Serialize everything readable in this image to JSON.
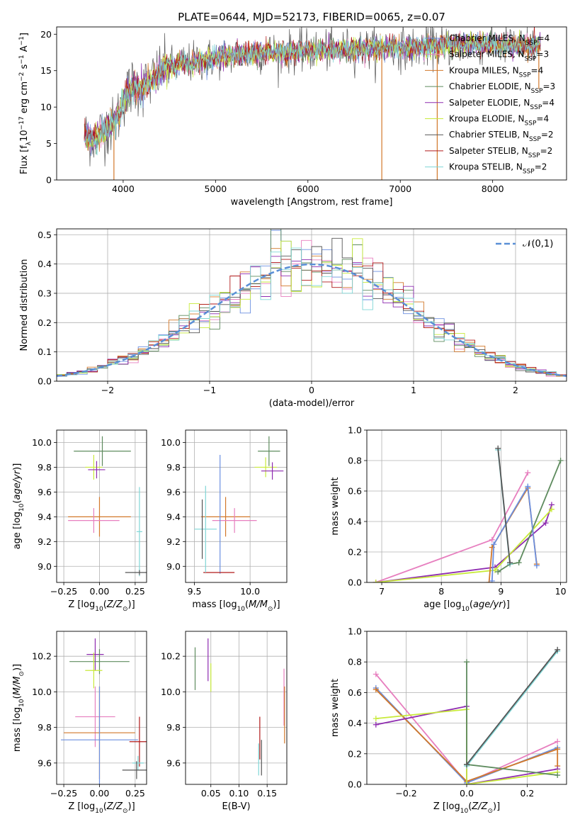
{
  "title": "PLATE=0644, MJD=52173, FIBERID=0065, z=0.07",
  "colors": {
    "Chabrier MILES": "#6b8fe0",
    "Salpeter MILES": "#e77fbf",
    "Kroupa MILES": "#d2782a",
    "Chabrier ELODIE": "#5e8b5e",
    "Salpeter ELODIE": "#8e2bb0",
    "Kroupa ELODIE": "#c8ea3a",
    "Chabrier STELIB": "#555555",
    "Salpeter STELIB": "#b01a1a",
    "Kroupa STELIB": "#7fd6d6"
  },
  "legend": [
    {
      "name": "Chabrier MILES",
      "nssp": "4"
    },
    {
      "name": "Salpeter MILES",
      "nssp": "3"
    },
    {
      "name": "Kroupa MILES",
      "nssp": "4"
    },
    {
      "name": "Chabrier ELODIE",
      "nssp": "3"
    },
    {
      "name": "Salpeter ELODIE",
      "nssp": "4"
    },
    {
      "name": "Kroupa ELODIE",
      "nssp": "4"
    },
    {
      "name": "Chabrier STELIB",
      "nssp": "2"
    },
    {
      "name": "Salpeter STELIB",
      "nssp": "2"
    },
    {
      "name": "Kroupa STELIB",
      "nssp": "2"
    }
  ],
  "chart_data": [
    {
      "id": "spectrum",
      "type": "line",
      "xlabel": "wavelength [Angstrom, rest frame]",
      "ylabel": "Flux [f_λ10^-17 erg cm^-2 s^-1 A^-1]",
      "xlim": [
        3280,
        8800
      ],
      "ylim": [
        0,
        21
      ],
      "xticks": [
        4000,
        5000,
        6000,
        7000,
        8000
      ],
      "yticks": [
        0,
        5,
        10,
        15,
        20
      ],
      "grid": false,
      "legend_position": "right",
      "continuum": {
        "x": [
          3580,
          3700,
          3800,
          3900,
          3950,
          4000,
          4100,
          4200,
          4300,
          4400,
          4500,
          4700,
          4900,
          5100,
          5300,
          5500,
          5700,
          5900,
          6100,
          6300,
          6500,
          6700,
          6900,
          7100,
          7300,
          7500,
          7700,
          7900,
          8100,
          8300,
          8500
        ],
        "y": [
          6.0,
          5.8,
          7.0,
          7.5,
          9.0,
          11.0,
          13.0,
          12.5,
          13.5,
          15.0,
          15.5,
          16.0,
          16.5,
          17.0,
          17.2,
          17.5,
          17.5,
          17.6,
          17.8,
          17.8,
          18.0,
          18.0,
          18.2,
          18.0,
          18.3,
          18.5,
          18.6,
          18.7,
          18.5,
          18.3,
          18.5
        ]
      },
      "features": [
        {
          "x": 3900,
          "y": 0
        },
        {
          "x": 6800,
          "y": 0
        },
        {
          "x": 7400,
          "y": 0
        },
        {
          "x": 8500,
          "y": 12.5
        }
      ]
    },
    {
      "id": "residuals",
      "type": "line",
      "xlabel": "(data-model)/error",
      "ylabel": "Normed distribution",
      "xlim": [
        -2.5,
        2.5
      ],
      "ylim": [
        0,
        0.52
      ],
      "xticks": [
        -2,
        -1,
        0,
        1,
        2
      ],
      "yticks": [
        0.0,
        0.1,
        0.2,
        0.3,
        0.4,
        0.5
      ],
      "grid": true,
      "legend_position": "top-right",
      "reference": {
        "name": "𝒩(0,1)",
        "mean": 0,
        "sigma": 1
      },
      "bin_width": 0.1
    },
    {
      "id": "age_vs_metallicity",
      "type": "scatter",
      "xlabel": "Z [log10(Z/Z⊙)]",
      "ylabel": "age [log10(age/yr)]",
      "xlim": [
        -0.3,
        0.33
      ],
      "ylim": [
        8.87,
        10.1
      ],
      "xticks": [
        -0.25,
        0.0,
        0.25
      ],
      "yticks": [
        9.0,
        9.2,
        9.4,
        9.6,
        9.8,
        10.0
      ],
      "grid": true,
      "points": [
        {
          "series": "Chabrier ELODIE",
          "x": 0.02,
          "y": 9.93,
          "xerr": 0.2,
          "yerr": 0.12
        },
        {
          "series": "Kroupa ELODIE",
          "x": -0.04,
          "y": 9.8,
          "xerr": 0.06,
          "yerr": 0.1
        },
        {
          "series": "Salpeter ELODIE",
          "x": -0.02,
          "y": 9.78,
          "xerr": 0.06,
          "yerr": 0.07
        },
        {
          "series": "Kroupa MILES",
          "x": 0.0,
          "y": 9.4,
          "xerr": 0.22,
          "yerr": 0.16
        },
        {
          "series": "Salpeter MILES",
          "x": -0.04,
          "y": 9.37,
          "xerr": 0.18,
          "yerr": 0.1
        },
        {
          "series": "Kroupa STELIB",
          "x": 0.28,
          "y": 9.28,
          "xerr": 0.02,
          "yerr": 0.36
        },
        {
          "series": "Chabrier STELIB",
          "x": 0.28,
          "y": 8.95,
          "xerr": 0.1,
          "yerr": 0.02
        }
      ]
    },
    {
      "id": "age_vs_mass",
      "type": "scatter",
      "xlabel": "mass [log10(M/M⊙)]",
      "ylabel": "",
      "xlim": [
        9.42,
        10.33
      ],
      "ylim": [
        8.87,
        10.1
      ],
      "xticks": [
        9.5,
        10.0
      ],
      "yticks": [
        9.0,
        9.2,
        9.4,
        9.6,
        9.8,
        10.0
      ],
      "grid": true,
      "points": [
        {
          "series": "Chabrier ELODIE",
          "x": 10.17,
          "y": 9.93,
          "xerr": 0.1,
          "yerr": 0.12
        },
        {
          "series": "Kroupa ELODIE",
          "x": 10.14,
          "y": 9.8,
          "xerr": 0.1,
          "yerr": 0.08
        },
        {
          "series": "Salpeter ELODIE",
          "x": 10.2,
          "y": 9.77,
          "xerr": 0.1,
          "yerr": 0.07
        },
        {
          "series": "Kroupa MILES",
          "x": 9.78,
          "y": 9.4,
          "xerr": 0.22,
          "yerr": 0.16
        },
        {
          "series": "Salpeter MILES",
          "x": 9.86,
          "y": 9.37,
          "xerr": 0.2,
          "yerr": 0.1
        },
        {
          "series": "Chabrier MILES",
          "x": 9.73,
          "y": 9.42,
          "xerr": 0.0,
          "yerr": 0.48
        },
        {
          "series": "Salpeter STELIB",
          "x": 9.72,
          "y": 8.95,
          "xerr": 0.14,
          "yerr": 0.0
        },
        {
          "series": "Kroupa STELIB",
          "x": 9.6,
          "y": 9.3,
          "xerr": 0.1,
          "yerr": 0.35
        },
        {
          "series": "Chabrier STELIB",
          "x": 9.57,
          "y": 9.3,
          "xerr": 0.0,
          "yerr": 0.24
        }
      ]
    },
    {
      "id": "mass_weight_vs_age",
      "type": "line",
      "xlabel": "age [log10(age/yr)]",
      "ylabel": "mass weight",
      "xlim": [
        6.75,
        10.1
      ],
      "ylim": [
        0,
        1.0
      ],
      "xticks": [
        7,
        8,
        9,
        10
      ],
      "yticks": [
        0.0,
        0.2,
        0.4,
        0.6,
        0.8,
        1.0
      ],
      "grid": true,
      "series": [
        {
          "name": "Salpeter MILES",
          "points": [
            [
              6.9,
              0.0
            ],
            [
              8.85,
              0.28
            ],
            [
              9.45,
              0.72
            ]
          ]
        },
        {
          "name": "Salpeter ELODIE",
          "points": [
            [
              6.9,
              0.0
            ],
            [
              8.9,
              0.1
            ],
            [
              9.75,
              0.39
            ],
            [
              9.85,
              0.51
            ]
          ]
        },
        {
          "name": "Kroupa ELODIE",
          "points": [
            [
              6.9,
              0.0
            ],
            [
              8.9,
              0.08
            ],
            [
              9.85,
              0.48
            ]
          ]
        },
        {
          "name": "Chabrier ELODIE",
          "points": [
            [
              8.95,
              0.07
            ],
            [
              9.15,
              0.12
            ],
            [
              9.3,
              0.13
            ],
            [
              10.0,
              0.8
            ]
          ]
        },
        {
          "name": "Kroupa MILES",
          "points": [
            [
              8.8,
              0.0
            ],
            [
              8.85,
              0.23
            ],
            [
              9.45,
              0.62
            ],
            [
              9.6,
              0.12
            ]
          ]
        },
        {
          "name": "Chabrier MILES",
          "points": [
            [
              8.85,
              0.01
            ],
            [
              8.88,
              0.25
            ],
            [
              9.45,
              0.63
            ],
            [
              9.6,
              0.11
            ]
          ]
        },
        {
          "name": "Kroupa STELIB",
          "points": [
            [
              8.95,
              0.87
            ],
            [
              9.15,
              0.12
            ]
          ]
        },
        {
          "name": "Chabrier STELIB",
          "points": [
            [
              8.95,
              0.88
            ],
            [
              9.15,
              0.13
            ]
          ]
        }
      ]
    },
    {
      "id": "mass_vs_metallicity",
      "type": "scatter",
      "xlabel": "Z [log10(Z/Z⊙)]",
      "ylabel": "mass [log10(M/M⊙)]",
      "xlim": [
        -0.3,
        0.33
      ],
      "ylim": [
        9.48,
        10.34
      ],
      "xticks": [
        -0.25,
        0.0,
        0.25
      ],
      "yticks": [
        9.6,
        9.8,
        10.0,
        10.2
      ],
      "grid": true,
      "points": [
        {
          "series": "Salpeter ELODIE",
          "x": -0.03,
          "y": 10.21,
          "xerr": 0.06,
          "yerr": 0.09
        },
        {
          "series": "Chabrier ELODIE",
          "x": 0.0,
          "y": 10.17,
          "xerr": 0.21,
          "yerr": 0.07
        },
        {
          "series": "Kroupa ELODIE",
          "x": -0.04,
          "y": 10.12,
          "xerr": 0.06,
          "yerr": 0.1
        },
        {
          "series": "Salpeter MILES",
          "x": -0.03,
          "y": 9.86,
          "xerr": 0.14,
          "yerr": 0.17
        },
        {
          "series": "Kroupa MILES",
          "x": 0.0,
          "y": 9.77,
          "xerr": 0.25,
          "yerr": 0.26
        },
        {
          "series": "Chabrier MILES",
          "x": 0.0,
          "y": 9.73,
          "xerr": 0.27,
          "yerr": 0.3
        },
        {
          "series": "Salpeter STELIB",
          "x": 0.28,
          "y": 9.72,
          "xerr": 0.07,
          "yerr": 0.14
        },
        {
          "series": "Kroupa STELIB",
          "x": 0.27,
          "y": 9.6,
          "xerr": 0.04,
          "yerr": 0.04
        },
        {
          "series": "Chabrier STELIB",
          "x": 0.26,
          "y": 9.56,
          "xerr": 0.1,
          "yerr": 0.05
        }
      ]
    },
    {
      "id": "mass_vs_ebv",
      "type": "scatter",
      "xlabel": "E(B-V)",
      "ylabel": "",
      "xlim": [
        0.005,
        0.185
      ],
      "ylim": [
        9.48,
        10.34
      ],
      "xticks": [
        0.05,
        0.1,
        0.15
      ],
      "yticks": [
        9.6,
        9.8,
        10.0,
        10.2
      ],
      "grid": true,
      "points": [
        {
          "series": "Chabrier ELODIE",
          "x": 0.022,
          "y": 10.13,
          "xerr": 0,
          "yerr": 0.12
        },
        {
          "series": "Salpeter ELODIE",
          "x": 0.045,
          "y": 10.18,
          "xerr": 0,
          "yerr": 0.12
        },
        {
          "series": "Kroupa ELODIE",
          "x": 0.05,
          "y": 10.08,
          "xerr": 0,
          "yerr": 0.08
        },
        {
          "series": "Salpeter STELIB",
          "x": 0.137,
          "y": 9.74,
          "xerr": 0,
          "yerr": 0.12
        },
        {
          "series": "Chabrier STELIB",
          "x": 0.14,
          "y": 9.63,
          "xerr": 0,
          "yerr": 0.1
        },
        {
          "series": "Kroupa STELIB",
          "x": 0.135,
          "y": 9.62,
          "xerr": 0,
          "yerr": 0.09
        },
        {
          "series": "Salpeter MILES",
          "x": 0.18,
          "y": 9.97,
          "xerr": 0,
          "yerr": 0.16
        },
        {
          "series": "Kroupa MILES",
          "x": 0.181,
          "y": 9.87,
          "xerr": 0,
          "yerr": 0.16
        }
      ]
    },
    {
      "id": "mass_weight_vs_metallicity",
      "type": "line",
      "xlabel": "Z [log10(Z/Z⊙)]",
      "ylabel": "mass weight",
      "xlim": [
        -0.33,
        0.33
      ],
      "ylim": [
        0,
        1.0
      ],
      "xticks": [
        -0.2,
        0.0,
        0.2
      ],
      "yticks": [
        0.0,
        0.2,
        0.4,
        0.6,
        0.8,
        1.0
      ],
      "grid": true,
      "series": [
        {
          "name": "Salpeter MILES",
          "points": [
            [
              -0.3,
              0.72
            ],
            [
              0.0,
              0.01
            ],
            [
              0.3,
              0.28
            ]
          ]
        },
        {
          "name": "Chabrier MILES",
          "points": [
            [
              -0.3,
              0.63
            ],
            [
              0.0,
              0.01
            ],
            [
              0.3,
              0.24
            ]
          ]
        },
        {
          "name": "Kroupa MILES",
          "points": [
            [
              -0.3,
              0.62
            ],
            [
              0.0,
              0.02
            ],
            [
              0.3,
              0.23
            ],
            [
              0.3,
              0.12
            ]
          ]
        },
        {
          "name": "Salpeter ELODIE",
          "points": [
            [
              -0.3,
              0.39
            ],
            [
              0.0,
              0.51
            ],
            [
              0.0,
              0.0
            ],
            [
              0.3,
              0.1
            ]
          ]
        },
        {
          "name": "Kroupa ELODIE",
          "points": [
            [
              -0.3,
              0.43
            ],
            [
              0.0,
              0.49
            ],
            [
              0.0,
              0.0
            ],
            [
              0.3,
              0.08
            ]
          ]
        },
        {
          "name": "Chabrier ELODIE",
          "points": [
            [
              0.0,
              0.8
            ],
            [
              0.0,
              0.13
            ],
            [
              0.3,
              0.06
            ]
          ]
        },
        {
          "name": "Kroupa STELIB",
          "points": [
            [
              0.0,
              0.12
            ],
            [
              0.3,
              0.87
            ]
          ]
        },
        {
          "name": "Chabrier STELIB",
          "points": [
            [
              0.0,
              0.13
            ],
            [
              0.3,
              0.88
            ]
          ]
        }
      ]
    }
  ]
}
